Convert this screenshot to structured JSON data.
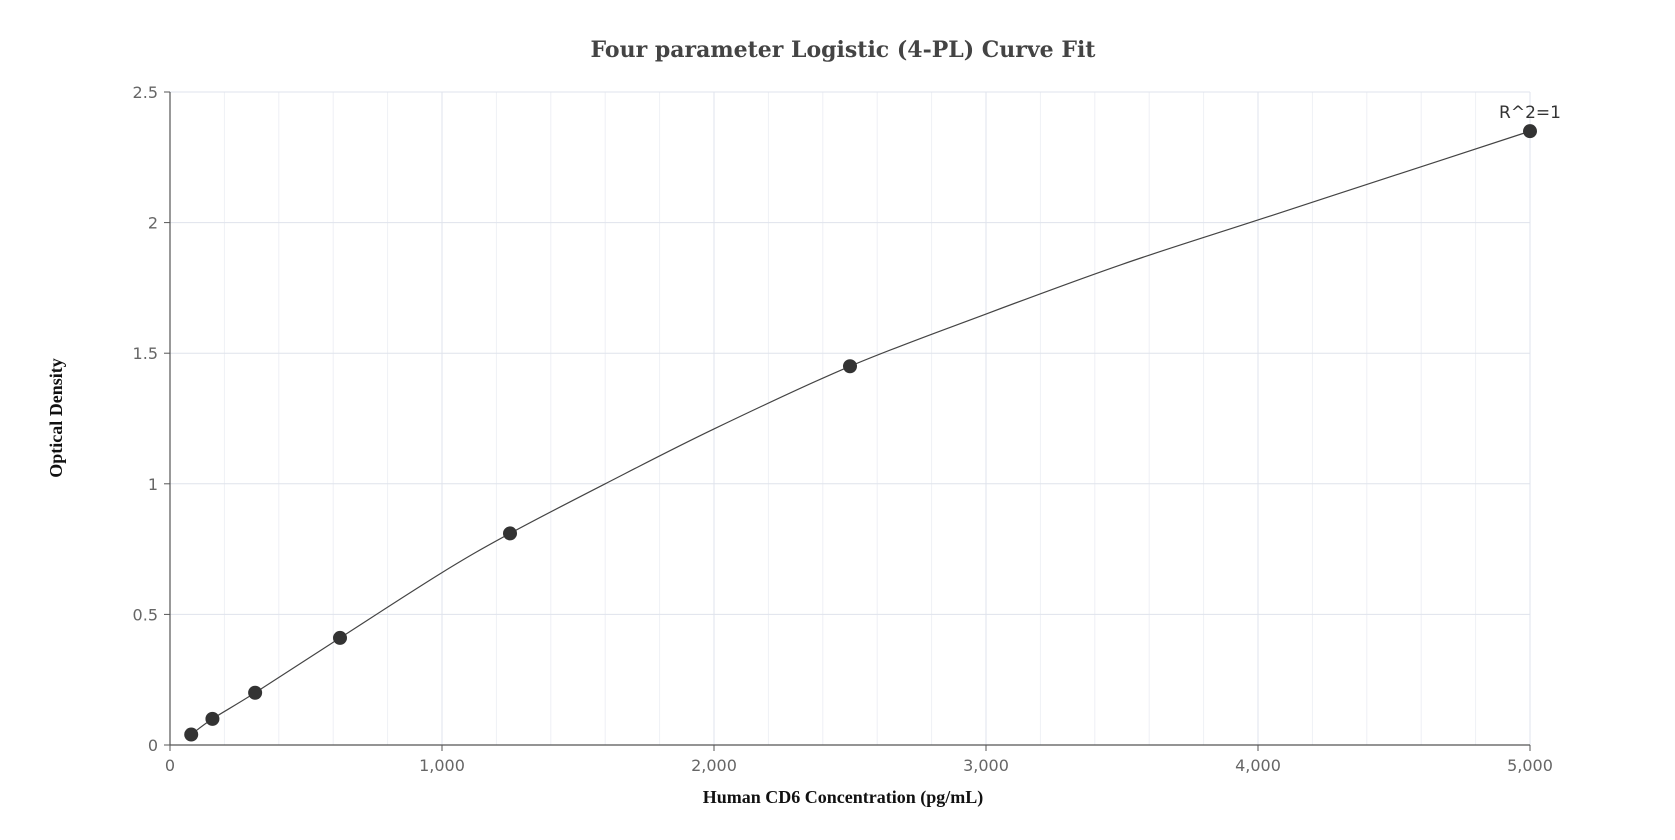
{
  "chart_data": {
    "type": "scatter",
    "title": "Four parameter Logistic (4-PL) Curve Fit",
    "xlabel": "Human CD6 Concentration (pg/mL)",
    "ylabel": "Optical Density",
    "xlim": [
      0,
      5000
    ],
    "ylim": [
      0,
      2.5
    ],
    "x_ticks": [
      0,
      1000,
      2000,
      3000,
      4000,
      5000
    ],
    "x_tick_labels": [
      "0",
      "1,000",
      "2,000",
      "3,000",
      "4,000",
      "5,000"
    ],
    "y_ticks": [
      0,
      0.5,
      1,
      1.5,
      2,
      2.5
    ],
    "y_tick_labels": [
      "0",
      "0.5",
      "1",
      "1.5",
      "2",
      "2.5"
    ],
    "grid": true,
    "series": [
      {
        "points": [
          {
            "x": 78,
            "y": 0.04
          },
          {
            "x": 156,
            "y": 0.1
          },
          {
            "x": 313,
            "y": 0.2
          },
          {
            "x": 625,
            "y": 0.41
          },
          {
            "x": 1250,
            "y": 0.81
          },
          {
            "x": 2500,
            "y": 1.45
          },
          {
            "x": 5000,
            "y": 2.35
          }
        ]
      }
    ],
    "fit_curve": [
      {
        "x": 78,
        "y": 0.04
      },
      {
        "x": 156,
        "y": 0.1
      },
      {
        "x": 313,
        "y": 0.2
      },
      {
        "x": 625,
        "y": 0.41
      },
      {
        "x": 1000,
        "y": 0.66
      },
      {
        "x": 1250,
        "y": 0.81
      },
      {
        "x": 1600,
        "y": 1.0
      },
      {
        "x": 2000,
        "y": 1.21
      },
      {
        "x": 2500,
        "y": 1.45
      },
      {
        "x": 3000,
        "y": 1.65
      },
      {
        "x": 3500,
        "y": 1.84
      },
      {
        "x": 4000,
        "y": 2.01
      },
      {
        "x": 4500,
        "y": 2.18
      },
      {
        "x": 5000,
        "y": 2.35
      }
    ],
    "annotation": "R^2=1",
    "colors": {
      "point": "#333333",
      "curve": "#444444",
      "grid": "#dfe3ec"
    }
  }
}
